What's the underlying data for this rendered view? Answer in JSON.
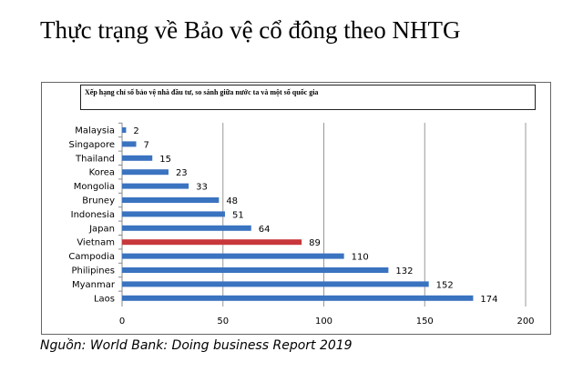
{
  "slide_title": "Thực trạng về Bảo vệ cổ đông theo NHTG",
  "source": "Nguồn: World Bank: Doing business Report 2019",
  "chart_data": {
    "type": "bar",
    "orientation": "horizontal",
    "title": "Xếp hạng chỉ số bảo vệ nhà đầu tư, so sánh giữa nước ta và một số quốc gia",
    "categories": [
      "Malaysia",
      "Singapore",
      "Thailand",
      "Korea",
      "Mongolia",
      "Bruney",
      "Indonesia",
      "Japan",
      "Vietnam",
      "Campodia",
      "Philipines",
      "Myanmar",
      "Laos"
    ],
    "values": [
      2,
      7,
      15,
      23,
      33,
      48,
      51,
      64,
      89,
      110,
      132,
      152,
      174
    ],
    "xlim": [
      0,
      200
    ],
    "xticks": [
      0,
      50,
      100,
      150,
      200
    ],
    "grid": true,
    "data_labels": true,
    "colors": {
      "default": "#3a73c0",
      "highlight": "#c8383b"
    },
    "highlight_category": "Vietnam"
  }
}
